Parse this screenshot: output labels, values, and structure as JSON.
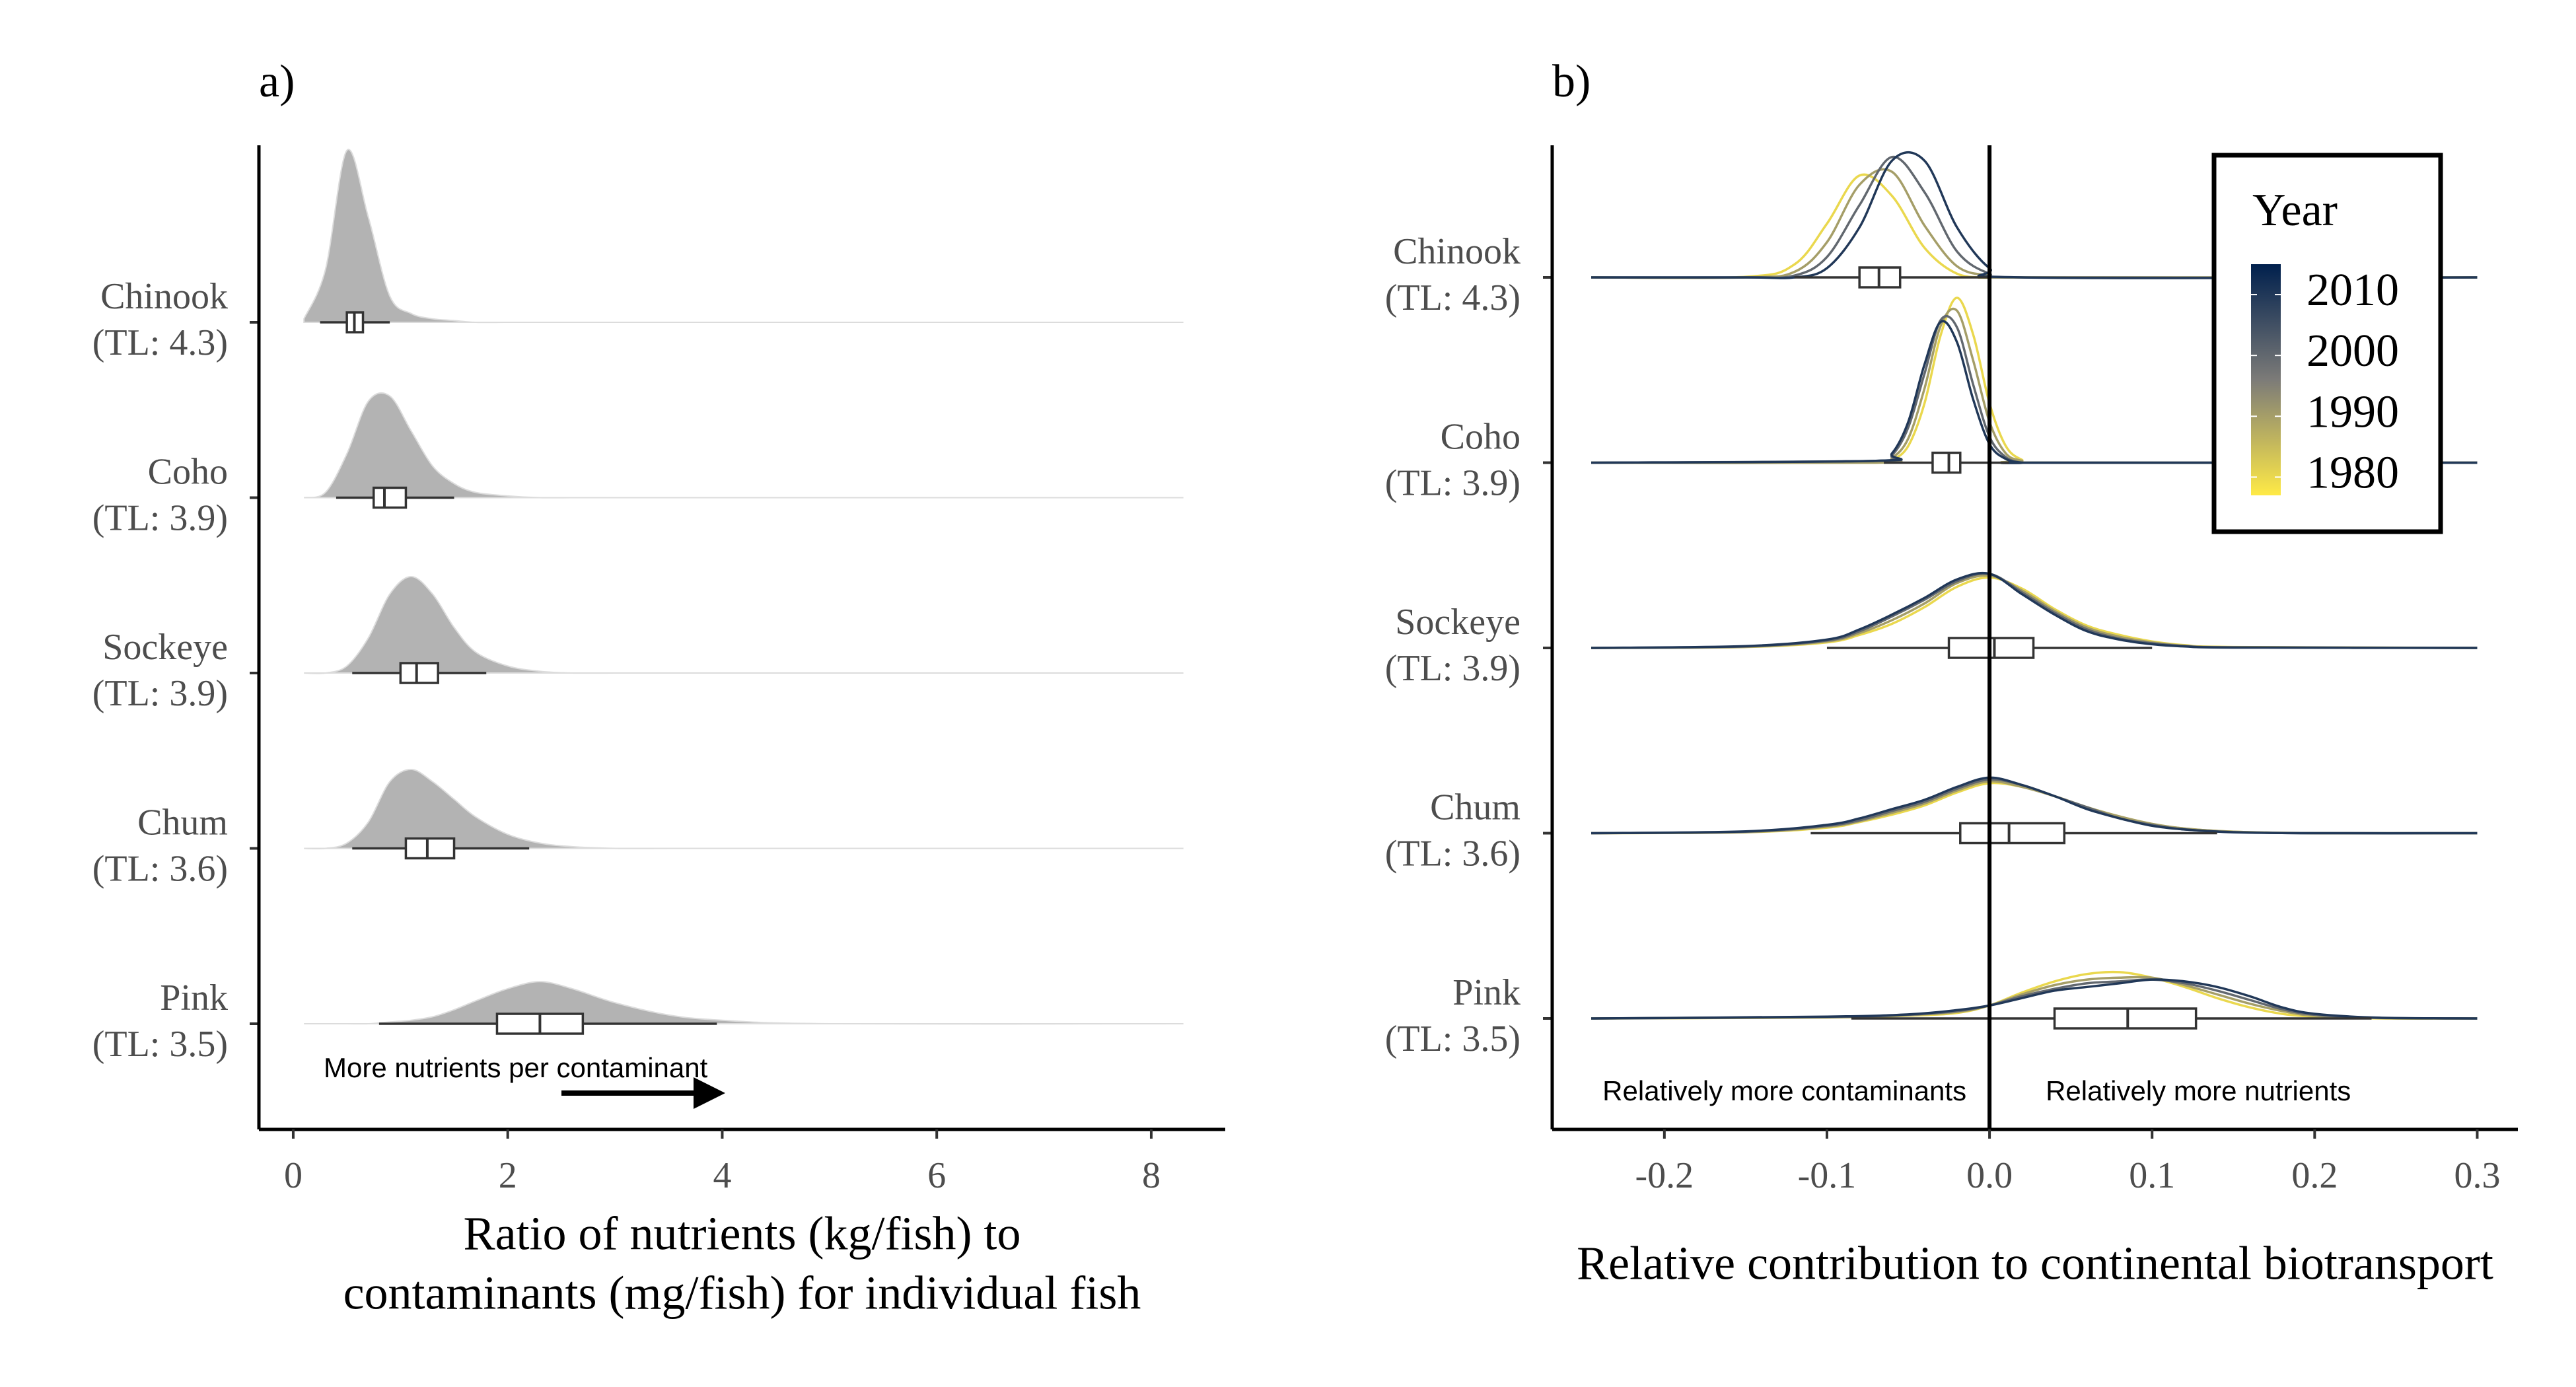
{
  "chart_data": [
    {
      "type": "ridgeline",
      "label": "a)",
      "xlabel": [
        "Ratio of nutrients (kg/fish) to",
        "contaminants (mg/fish) for individual fish"
      ],
      "xlim": [
        -0.32,
        8.69
      ],
      "xticks": [
        0,
        2,
        4,
        6,
        8
      ],
      "color": "#b3b3b3",
      "annotation": "More nutrients per contaminant",
      "ridges": [
        {
          "category": [
            "Chinook",
            "(TL: 4.3)"
          ],
          "x": [
            0.1,
            0.3,
            0.5,
            0.7,
            0.9,
            1.1,
            1.3,
            1.5,
            1.7,
            2.0,
            2.3,
            2.6,
            3.0,
            3.5,
            4.0,
            5.0,
            8.3
          ],
          "density": [
            0.02,
            0.3,
            0.98,
            0.6,
            0.15,
            0.05,
            0.02,
            0.01,
            0,
            0,
            0,
            0,
            0,
            0,
            0,
            0,
            0
          ],
          "box": {
            "min": 0.25,
            "q1": 0.5,
            "median": 0.57,
            "q3": 0.65,
            "max": 0.9
          }
        },
        {
          "category": [
            "Coho",
            "(TL: 3.9)"
          ],
          "x": [
            0.1,
            0.3,
            0.5,
            0.7,
            0.9,
            1.1,
            1.3,
            1.5,
            1.7,
            2.0,
            2.3,
            2.6,
            3.0,
            3.5,
            4.0,
            5.0,
            8.3
          ],
          "density": [
            0,
            0.03,
            0.25,
            0.55,
            0.58,
            0.38,
            0.18,
            0.08,
            0.03,
            0.01,
            0,
            0,
            0,
            0,
            0,
            0,
            0
          ],
          "box": {
            "min": 0.4,
            "q1": 0.75,
            "median": 0.85,
            "q3": 1.05,
            "max": 1.5
          }
        },
        {
          "category": [
            "Sockeye",
            "(TL: 3.9)"
          ],
          "x": [
            0.1,
            0.3,
            0.5,
            0.7,
            0.9,
            1.1,
            1.3,
            1.5,
            1.7,
            2.0,
            2.3,
            2.6,
            3.0,
            3.5,
            4.0,
            5.0,
            8.3
          ],
          "density": [
            0,
            0,
            0.04,
            0.2,
            0.45,
            0.55,
            0.45,
            0.26,
            0.12,
            0.04,
            0.01,
            0,
            0,
            0,
            0,
            0,
            0
          ],
          "box": {
            "min": 0.55,
            "q1": 1.0,
            "median": 1.15,
            "q3": 1.35,
            "max": 1.8
          }
        },
        {
          "category": [
            "Chum",
            "(TL: 3.6)"
          ],
          "x": [
            0.1,
            0.3,
            0.5,
            0.7,
            0.9,
            1.1,
            1.3,
            1.5,
            1.7,
            2.0,
            2.3,
            2.6,
            3.0,
            3.5,
            4.0,
            5.0,
            8.3
          ],
          "density": [
            0,
            0,
            0.03,
            0.15,
            0.38,
            0.45,
            0.38,
            0.28,
            0.18,
            0.08,
            0.03,
            0.01,
            0,
            0,
            0,
            0,
            0
          ],
          "box": {
            "min": 0.55,
            "q1": 1.05,
            "median": 1.25,
            "q3": 1.5,
            "max": 2.2
          }
        },
        {
          "category": [
            "Pink",
            "(TL: 3.5)"
          ],
          "x": [
            0.1,
            0.3,
            0.5,
            0.7,
            0.9,
            1.1,
            1.3,
            1.5,
            1.7,
            2.0,
            2.3,
            2.6,
            3.0,
            3.5,
            4.0,
            5.0,
            8.3
          ],
          "density": [
            0,
            0,
            0,
            0,
            0.01,
            0.02,
            0.04,
            0.08,
            0.13,
            0.2,
            0.24,
            0.2,
            0.12,
            0.05,
            0.02,
            0,
            0
          ],
          "box": {
            "min": 0.8,
            "q1": 1.9,
            "median": 2.3,
            "q3": 2.7,
            "max": 3.95
          }
        }
      ]
    },
    {
      "type": "ridgeline",
      "label": "b)",
      "xlabel": [
        "Relative contribution to continental biotransport"
      ],
      "xlim": [
        -0.269,
        0.325
      ],
      "xticks": [
        -0.2,
        -0.1,
        {
          "value": 0,
          "label": "0.0"
        },
        0.1,
        0.2,
        0.3
      ],
      "vline": 0,
      "annotations": [
        "Relatively more contaminants",
        "Relatively more nutrients"
      ],
      "color_scale": {
        "title": "Year",
        "lim": [
          1977,
          2015
        ],
        "colors": [
          "#FFEA46",
          "#7C7B78",
          "#00204D"
        ],
        "ticks": [
          2010,
          2000,
          1990,
          1980
        ]
      },
      "ridges": [
        {
          "category": [
            "Chinook",
            "(TL: 4.3)"
          ],
          "x": [
            -0.245,
            -0.15,
            -0.12,
            -0.1,
            -0.08,
            -0.06,
            -0.04,
            -0.02,
            0,
            0.02,
            0.3
          ],
          "curves": [
            {
              "year": 1980,
              "density": [
                0,
                0.003,
                0.07,
                0.29,
                0.55,
                0.44,
                0.16,
                0.02,
                0,
                0,
                0
              ]
            },
            {
              "year": 1990,
              "density": [
                0,
                0,
                0.03,
                0.19,
                0.5,
                0.57,
                0.28,
                0.06,
                0.01,
                0,
                0
              ]
            },
            {
              "year": 2000,
              "density": [
                0,
                0,
                0.01,
                0.11,
                0.39,
                0.65,
                0.46,
                0.14,
                0.02,
                0,
                0
              ]
            },
            {
              "year": 2010,
              "density": [
                0,
                0,
                0,
                0.05,
                0.27,
                0.63,
                0.63,
                0.27,
                0.05,
                0,
                0
              ]
            }
          ],
          "box": {
            "min": -0.12,
            "q1": -0.08,
            "median": -0.068,
            "q3": -0.055,
            "max": -0.001
          }
        },
        {
          "category": [
            "Coho",
            "(TL: 3.9)"
          ],
          "x": [
            -0.245,
            -0.07,
            -0.06,
            -0.05,
            -0.04,
            -0.03,
            -0.02,
            -0.01,
            0,
            0.01,
            0.02,
            0.03,
            0.3
          ],
          "curves": [
            {
              "year": 1980,
              "density": [
                0,
                0,
                0.015,
                0.09,
                0.32,
                0.69,
                0.89,
                0.69,
                0.32,
                0.09,
                0.015,
                0,
                0
              ]
            },
            {
              "year": 1990,
              "density": [
                0,
                0,
                0.025,
                0.13,
                0.4,
                0.74,
                0.82,
                0.55,
                0.22,
                0.05,
                0.01,
                0,
                0
              ]
            },
            {
              "year": 2000,
              "density": [
                0,
                0.01,
                0.04,
                0.19,
                0.48,
                0.77,
                0.73,
                0.42,
                0.14,
                0.03,
                0,
                0,
                0
              ]
            },
            {
              "year": 2010,
              "density": [
                0,
                0.01,
                0.05,
                0.22,
                0.53,
                0.76,
                0.65,
                0.34,
                0.1,
                0.02,
                0,
                0,
                0
              ]
            }
          ],
          "box": {
            "min": -0.065,
            "q1": -0.035,
            "median": -0.025,
            "q3": -0.018,
            "max": 0.012
          }
        },
        {
          "category": [
            "Sockeye",
            "(TL: 3.9)"
          ],
          "x": [
            -0.245,
            -0.15,
            -0.1,
            -0.08,
            -0.06,
            -0.04,
            -0.02,
            0,
            0.02,
            0.04,
            0.06,
            0.08,
            0.1,
            0.12,
            0.15,
            0.3
          ],
          "curves": [
            {
              "year": 1980,
              "density": [
                0,
                0.005,
                0.03,
                0.07,
                0.13,
                0.22,
                0.33,
                0.38,
                0.32,
                0.21,
                0.12,
                0.07,
                0.035,
                0.015,
                0.005,
                0
              ]
            },
            {
              "year": 1990,
              "density": [
                0,
                0.006,
                0.035,
                0.08,
                0.15,
                0.24,
                0.35,
                0.39,
                0.31,
                0.2,
                0.11,
                0.06,
                0.03,
                0.012,
                0.004,
                0
              ]
            },
            {
              "year": 2000,
              "density": [
                0,
                0.008,
                0.04,
                0.09,
                0.17,
                0.26,
                0.36,
                0.4,
                0.3,
                0.19,
                0.1,
                0.05,
                0.025,
                0.01,
                0.003,
                0
              ]
            },
            {
              "year": 2010,
              "density": [
                0,
                0.01,
                0.045,
                0.1,
                0.18,
                0.27,
                0.37,
                0.4,
                0.29,
                0.18,
                0.09,
                0.045,
                0.02,
                0.008,
                0.002,
                0
              ]
            }
          ],
          "box": {
            "min": -0.1,
            "q1": -0.025,
            "median": 0.003,
            "q3": 0.027,
            "max": 0.1
          }
        },
        {
          "category": [
            "Chum",
            "(TL: 3.6)"
          ],
          "x": [
            -0.245,
            -0.15,
            -0.1,
            -0.08,
            -0.06,
            -0.04,
            -0.02,
            0,
            0.02,
            0.04,
            0.06,
            0.08,
            0.1,
            0.12,
            0.15,
            0.2,
            0.3
          ],
          "curves": [
            {
              "year": 1980,
              "density": [
                0,
                0.005,
                0.03,
                0.06,
                0.1,
                0.15,
                0.22,
                0.27,
                0.25,
                0.2,
                0.14,
                0.09,
                0.05,
                0.025,
                0.008,
                0,
                0
              ]
            },
            {
              "year": 1990,
              "density": [
                0,
                0.006,
                0.035,
                0.065,
                0.11,
                0.16,
                0.23,
                0.28,
                0.25,
                0.2,
                0.14,
                0.09,
                0.05,
                0.025,
                0.008,
                0,
                0
              ]
            },
            {
              "year": 2000,
              "density": [
                0,
                0.008,
                0.04,
                0.07,
                0.12,
                0.17,
                0.24,
                0.29,
                0.26,
                0.2,
                0.14,
                0.08,
                0.045,
                0.02,
                0.006,
                0,
                0
              ]
            },
            {
              "year": 2010,
              "density": [
                0,
                0.01,
                0.045,
                0.08,
                0.13,
                0.18,
                0.25,
                0.3,
                0.26,
                0.2,
                0.13,
                0.08,
                0.04,
                0.02,
                0.005,
                0,
                0
              ]
            }
          ],
          "box": {
            "min": -0.11,
            "q1": -0.018,
            "median": 0.012,
            "q3": 0.046,
            "max": 0.14
          }
        },
        {
          "category": [
            "Pink",
            "(TL: 3.5)"
          ],
          "x": [
            -0.245,
            -0.1,
            -0.05,
            -0.02,
            0,
            0.02,
            0.04,
            0.06,
            0.08,
            0.1,
            0.12,
            0.14,
            0.16,
            0.18,
            0.2,
            0.24,
            0.3
          ],
          "curves": [
            {
              "year": 1980,
              "density": [
                0,
                0.005,
                0.015,
                0.03,
                0.07,
                0.14,
                0.2,
                0.24,
                0.25,
                0.22,
                0.17,
                0.11,
                0.06,
                0.025,
                0.01,
                0,
                0
              ]
            },
            {
              "year": 1990,
              "density": [
                0,
                0.006,
                0.018,
                0.035,
                0.07,
                0.13,
                0.18,
                0.21,
                0.22,
                0.22,
                0.18,
                0.13,
                0.08,
                0.04,
                0.015,
                0.002,
                0
              ]
            },
            {
              "year": 2000,
              "density": [
                0,
                0.008,
                0.02,
                0.04,
                0.07,
                0.12,
                0.16,
                0.19,
                0.2,
                0.21,
                0.19,
                0.15,
                0.1,
                0.05,
                0.02,
                0.003,
                0
              ]
            },
            {
              "year": 2010,
              "density": [
                0,
                0.01,
                0.022,
                0.045,
                0.07,
                0.11,
                0.15,
                0.17,
                0.19,
                0.21,
                0.2,
                0.17,
                0.12,
                0.06,
                0.025,
                0.004,
                0
              ]
            }
          ],
          "box": {
            "min": -0.085,
            "q1": 0.04,
            "median": 0.085,
            "q3": 0.127,
            "max": 0.235
          }
        }
      ]
    }
  ]
}
